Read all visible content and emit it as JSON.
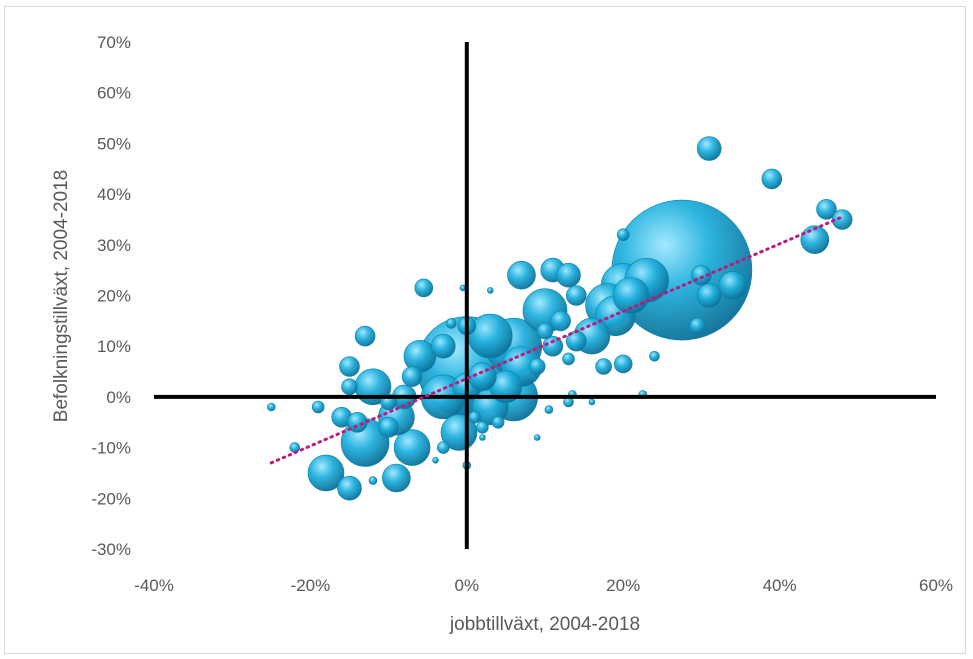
{
  "chart_data": {
    "type": "scatter",
    "variant": "bubble",
    "title": "",
    "xlabel": "jobbtillväxt, 2004-2018",
    "ylabel": "Befolkningstillväxt, 2004-2018",
    "xlim": [
      -0.4,
      0.6
    ],
    "ylim": [
      -0.3,
      0.7
    ],
    "xticks": [
      {
        "v": -0.4,
        "label": "-40%"
      },
      {
        "v": -0.2,
        "label": "-20%"
      },
      {
        "v": 0,
        "label": "0%"
      },
      {
        "v": 0.2,
        "label": "20%"
      },
      {
        "v": 0.4,
        "label": "40%"
      },
      {
        "v": 0.6,
        "label": "60%"
      }
    ],
    "yticks": [
      {
        "v": 0.7,
        "label": "70%"
      },
      {
        "v": 0.6,
        "label": "60%"
      },
      {
        "v": 0.5,
        "label": "50%"
      },
      {
        "v": 0.4,
        "label": "40%"
      },
      {
        "v": 0.3,
        "label": "30%"
      },
      {
        "v": 0.2,
        "label": "20%"
      },
      {
        "v": 0.1,
        "label": "10%"
      },
      {
        "v": 0,
        "label": "0%"
      },
      {
        "v": -0.1,
        "label": "-10%"
      },
      {
        "v": -0.2,
        "label": "-20%"
      },
      {
        "v": -0.3,
        "label": "-30%"
      }
    ],
    "grid": false,
    "legend": "none",
    "bubble_color": "#1ea0cc",
    "trendline": {
      "type": "linear",
      "style": "dotted",
      "color": "#c0177e",
      "x": [
        -0.25,
        0.48
      ],
      "y": [
        -0.13,
        0.355
      ]
    },
    "points": [
      {
        "x": 0.275,
        "y": 0.25,
        "s": 70
      },
      {
        "x": 0.0,
        "y": 0.06,
        "s": 50
      },
      {
        "x": 0.2,
        "y": 0.22,
        "s": 22
      },
      {
        "x": 0.23,
        "y": 0.23,
        "s": 22
      },
      {
        "x": 0.18,
        "y": 0.18,
        "s": 22
      },
      {
        "x": 0.16,
        "y": 0.12,
        "s": 18
      },
      {
        "x": 0.19,
        "y": 0.16,
        "s": 20
      },
      {
        "x": 0.21,
        "y": 0.2,
        "s": 18
      },
      {
        "x": 0.1,
        "y": 0.17,
        "s": 22
      },
      {
        "x": 0.06,
        "y": 0.1,
        "s": 28
      },
      {
        "x": 0.03,
        "y": 0.12,
        "s": 22
      },
      {
        "x": 0.07,
        "y": 0.06,
        "s": 20
      },
      {
        "x": 0.06,
        "y": 0.0,
        "s": 24
      },
      {
        "x": 0.03,
        "y": -0.02,
        "s": 18
      },
      {
        "x": 0.05,
        "y": 0.02,
        "s": 16
      },
      {
        "x": -0.03,
        "y": 0.0,
        "s": 22
      },
      {
        "x": -0.01,
        "y": -0.07,
        "s": 18
      },
      {
        "x": -0.12,
        "y": 0.02,
        "s": 18
      },
      {
        "x": -0.13,
        "y": -0.09,
        "s": 24
      },
      {
        "x": -0.07,
        "y": -0.1,
        "s": 18
      },
      {
        "x": -0.09,
        "y": -0.04,
        "s": 18
      },
      {
        "x": -0.06,
        "y": 0.08,
        "s": 16
      },
      {
        "x": -0.18,
        "y": -0.15,
        "s": 18
      },
      {
        "x": -0.15,
        "y": -0.18,
        "s": 12
      },
      {
        "x": -0.09,
        "y": -0.16,
        "s": 14
      },
      {
        "x": 0.31,
        "y": 0.49,
        "s": 12
      },
      {
        "x": 0.39,
        "y": 0.43,
        "s": 10
      },
      {
        "x": 0.46,
        "y": 0.37,
        "s": 10
      },
      {
        "x": 0.48,
        "y": 0.35,
        "s": 10
      },
      {
        "x": 0.445,
        "y": 0.31,
        "s": 14
      },
      {
        "x": 0.34,
        "y": 0.22,
        "s": 14
      },
      {
        "x": 0.31,
        "y": 0.2,
        "s": 12
      },
      {
        "x": 0.3,
        "y": 0.24,
        "s": 10
      },
      {
        "x": 0.295,
        "y": 0.14,
        "s": 8
      },
      {
        "x": 0.07,
        "y": 0.24,
        "s": 14
      },
      {
        "x": 0.11,
        "y": 0.25,
        "s": 12
      },
      {
        "x": 0.13,
        "y": 0.24,
        "s": 12
      },
      {
        "x": 0.14,
        "y": 0.2,
        "s": 10
      },
      {
        "x": 0.12,
        "y": 0.15,
        "s": 10
      },
      {
        "x": 0.14,
        "y": 0.11,
        "s": 10
      },
      {
        "x": 0.11,
        "y": 0.1,
        "s": 10
      },
      {
        "x": 0.2,
        "y": 0.065,
        "s": 9
      },
      {
        "x": 0.175,
        "y": 0.06,
        "s": 8
      },
      {
        "x": 0.2,
        "y": 0.32,
        "s": 6
      },
      {
        "x": 0.24,
        "y": 0.08,
        "s": 5
      },
      {
        "x": -0.055,
        "y": 0.215,
        "s": 9
      },
      {
        "x": 0.0,
        "y": 0.14,
        "s": 9
      },
      {
        "x": -0.02,
        "y": 0.145,
        "s": 5
      },
      {
        "x": -0.03,
        "y": 0.1,
        "s": 12
      },
      {
        "x": -0.13,
        "y": 0.12,
        "s": 10
      },
      {
        "x": -0.15,
        "y": 0.06,
        "s": 10
      },
      {
        "x": -0.15,
        "y": 0.02,
        "s": 8
      },
      {
        "x": -0.16,
        "y": -0.04,
        "s": 10
      },
      {
        "x": -0.14,
        "y": -0.05,
        "s": 10
      },
      {
        "x": -0.19,
        "y": -0.02,
        "s": 6
      },
      {
        "x": -0.1,
        "y": -0.06,
        "s": 10
      },
      {
        "x": -0.03,
        "y": -0.1,
        "s": 6
      },
      {
        "x": 0.02,
        "y": -0.06,
        "s": 6
      },
      {
        "x": 0.01,
        "y": -0.04,
        "s": 6
      },
      {
        "x": 0.04,
        "y": -0.05,
        "s": 6
      },
      {
        "x": 0.09,
        "y": 0.06,
        "s": 8
      },
      {
        "x": 0.1,
        "y": 0.13,
        "s": 8
      },
      {
        "x": 0.13,
        "y": 0.075,
        "s": 6
      },
      {
        "x": -0.22,
        "y": -0.1,
        "s": 5
      },
      {
        "x": -0.25,
        "y": -0.02,
        "s": 4
      },
      {
        "x": 0.0,
        "y": -0.135,
        "s": 4
      },
      {
        "x": -0.12,
        "y": -0.165,
        "s": 4
      },
      {
        "x": -0.04,
        "y": -0.125,
        "s": 3
      },
      {
        "x": 0.09,
        "y": -0.08,
        "s": 3
      },
      {
        "x": 0.105,
        "y": -0.025,
        "s": 4
      },
      {
        "x": 0.13,
        "y": -0.01,
        "s": 5
      },
      {
        "x": 0.135,
        "y": 0.005,
        "s": 4
      },
      {
        "x": 0.16,
        "y": -0.01,
        "s": 3
      },
      {
        "x": 0.225,
        "y": 0.005,
        "s": 4
      },
      {
        "x": 0.02,
        "y": -0.08,
        "s": 3
      },
      {
        "x": 0.03,
        "y": 0.21,
        "s": 3
      },
      {
        "x": -0.005,
        "y": 0.215,
        "s": 3
      },
      {
        "x": 0.0,
        "y": 0.02,
        "s": 14
      },
      {
        "x": -0.07,
        "y": 0.04,
        "s": 10
      },
      {
        "x": -0.08,
        "y": 0.0,
        "s": 12
      },
      {
        "x": 0.02,
        "y": 0.04,
        "s": 14
      },
      {
        "x": -0.1,
        "y": -0.01,
        "s": 8
      }
    ]
  }
}
